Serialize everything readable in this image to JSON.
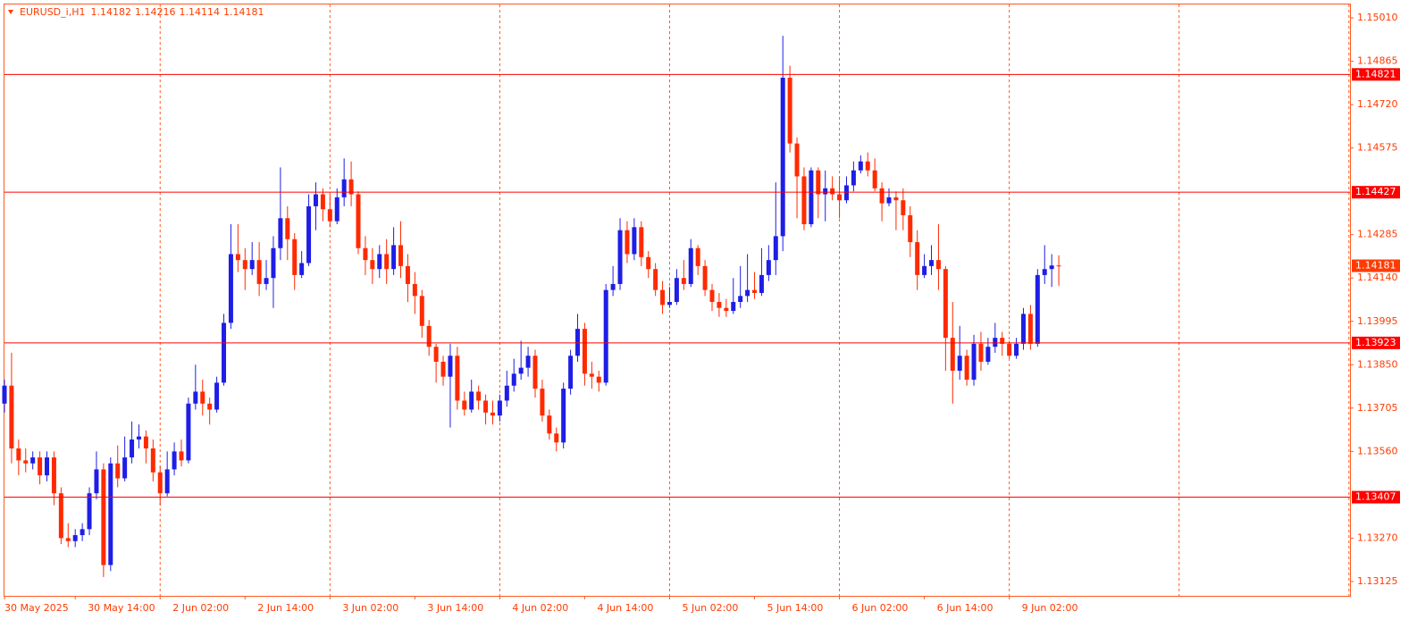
{
  "chart_data": {
    "type": "candlestick",
    "symbol": "EURUSD_i,H1",
    "bull_color": "#1e1ee6",
    "bear_color": "#ff2a00",
    "ylim": [
      1.13077,
      1.15055
    ],
    "yticks": [
      {
        "value": 1.1501,
        "label": "1.15010"
      },
      {
        "value": 1.14865,
        "label": "1.14865"
      },
      {
        "value": 1.1472,
        "label": "1.14720"
      },
      {
        "value": 1.14575,
        "label": "1.14575"
      },
      {
        "value": 1.14285,
        "label": "1.14285"
      },
      {
        "value": 1.1414,
        "label": "1.14140"
      },
      {
        "value": 1.13995,
        "label": "1.13995"
      },
      {
        "value": 1.1385,
        "label": "1.13850"
      },
      {
        "value": 1.13705,
        "label": "1.13705"
      },
      {
        "value": 1.1356,
        "label": "1.13560"
      },
      {
        "value": 1.1327,
        "label": "1.13270"
      },
      {
        "value": 1.13125,
        "label": "1.13125"
      }
    ],
    "levels": [
      1.14821,
      1.14427,
      1.13923,
      1.13407
    ],
    "period_separators": true,
    "categories": [
      "30 May 2025",
      null,
      null,
      null,
      null,
      null,
      null,
      null,
      null,
      null,
      "30 May 14:00",
      null,
      null,
      null,
      null,
      null,
      null,
      null,
      null,
      null,
      null,
      null,
      "2 Jun 02:00",
      null,
      null,
      null,
      null,
      null,
      null,
      null,
      null,
      null,
      null,
      null,
      "2 Jun 14:00",
      null,
      null,
      null,
      null,
      null,
      null,
      null,
      null,
      null,
      null,
      null,
      "3 Jun 02:00",
      null,
      null,
      null,
      null,
      null,
      null,
      null,
      null,
      null,
      null,
      null,
      "3 Jun 14:00",
      null,
      null,
      null,
      null,
      null,
      null,
      null,
      null,
      null,
      null,
      null,
      "4 Jun 02:00",
      null,
      null,
      null,
      null,
      null,
      null,
      null,
      null,
      null,
      null,
      null,
      "4 Jun 14:00",
      null,
      null,
      null,
      null,
      null,
      null,
      null,
      null,
      null,
      null,
      null,
      "5 Jun 02:00",
      null,
      null,
      null,
      null,
      null,
      null,
      null,
      null,
      null,
      null,
      null,
      "5 Jun 14:00",
      null,
      null,
      null,
      null,
      null,
      null,
      null,
      null,
      null,
      null,
      null,
      "6 Jun 02:00",
      null,
      null,
      null,
      null,
      null,
      null,
      null,
      null,
      null,
      null,
      null,
      "6 Jun 14:00",
      null,
      null,
      null,
      null,
      null,
      null,
      null,
      null,
      null,
      null,
      null,
      "9 Jun 02:00",
      null,
      null,
      null,
      null,
      null,
      null,
      null
    ],
    "open": [
      1.1372,
      1.1378,
      1.1357,
      1.1353,
      1.1352,
      1.1354,
      1.1348,
      1.1354,
      1.1342,
      1.1327,
      1.1326,
      1.1328,
      1.133,
      1.1342,
      1.135,
      1.1318,
      1.1352,
      1.1347,
      1.1354,
      1.136,
      1.1361,
      1.1357,
      1.1349,
      1.1342,
      1.135,
      1.1356,
      1.1353,
      1.1372,
      1.1376,
      1.1372,
      1.137,
      1.1379,
      1.1399,
      1.1422,
      1.142,
      1.1417,
      1.142,
      1.1412,
      1.1414,
      1.1424,
      1.1434,
      1.1427,
      1.1415,
      1.1419,
      1.1438,
      1.1442,
      1.1437,
      1.1433,
      1.1441,
      1.1447,
      1.1442,
      1.1424,
      1.142,
      1.1417,
      1.1422,
      1.1417,
      1.1425,
      1.1418,
      1.1412,
      1.1408,
      1.1398,
      1.1391,
      1.1386,
      1.1381,
      1.1388,
      1.1373,
      1.137,
      1.1376,
      1.1373,
      1.1369,
      1.1368,
      1.1373,
      1.1378,
      1.1382,
      1.1384,
      1.1388,
      1.1377,
      1.1368,
      1.1362,
      1.1359,
      1.1377,
      1.1388,
      1.1397,
      1.1382,
      1.1381,
      1.1379,
      1.141,
      1.1412,
      1.143,
      1.1422,
      1.1431,
      1.1421,
      1.1417,
      1.141,
      1.1405,
      1.1406,
      1.1414,
      1.1412,
      1.1424,
      1.1418,
      1.141,
      1.1406,
      1.1404,
      1.1403,
      1.1406,
      1.1408,
      1.141,
      1.1409,
      1.1415,
      1.142,
      1.1428,
      1.1481,
      1.1459,
      1.1448,
      1.1432,
      1.145,
      1.1442,
      1.1444,
      1.1442,
      1.144,
      1.1445,
      1.145,
      1.1453,
      1.145,
      1.1444,
      1.1439,
      1.1441,
      1.144,
      1.1435,
      1.1426,
      1.1415,
      1.1418,
      1.142,
      1.1417,
      1.1394,
      1.1383,
      1.1388,
      1.138,
      1.1392,
      1.1386,
      1.1391,
      1.1394,
      1.1392,
      1.1388,
      1.1392,
      1.1402,
      1.1392,
      1.1415,
      1.1417,
      1.14182
    ],
    "high": [
      1.138,
      1.1389,
      1.136,
      1.1357,
      1.1356,
      1.1356,
      1.1356,
      1.1356,
      1.1344,
      1.1332,
      1.133,
      1.1332,
      1.1344,
      1.1356,
      1.1352,
      1.1354,
      1.1358,
      1.1361,
      1.1366,
      1.1365,
      1.1363,
      1.136,
      1.1351,
      1.1356,
      1.1359,
      1.136,
      1.1374,
      1.1385,
      1.138,
      1.1374,
      1.1381,
      1.1402,
      1.1432,
      1.1432,
      1.1424,
      1.1426,
      1.1426,
      1.142,
      1.1428,
      1.1451,
      1.1438,
      1.1429,
      1.1423,
      1.1442,
      1.1446,
      1.1444,
      1.1442,
      1.1444,
      1.1454,
      1.1453,
      1.1443,
      1.1428,
      1.1424,
      1.1425,
      1.1427,
      1.1431,
      1.1433,
      1.1422,
      1.1416,
      1.141,
      1.14,
      1.1392,
      1.1388,
      1.1392,
      1.1391,
      1.1376,
      1.138,
      1.1378,
      1.1375,
      1.1373,
      1.1375,
      1.1383,
      1.1387,
      1.1393,
      1.1391,
      1.139,
      1.138,
      1.137,
      1.1364,
      1.1379,
      1.139,
      1.1402,
      1.1399,
      1.1386,
      1.1383,
      1.1412,
      1.1418,
      1.1434,
      1.1433,
      1.1434,
      1.1433,
      1.1423,
      1.1419,
      1.1413,
      1.1411,
      1.1417,
      1.142,
      1.1427,
      1.1425,
      1.142,
      1.1412,
      1.1409,
      1.1407,
      1.1414,
      1.1418,
      1.1422,
      1.1416,
      1.1424,
      1.1425,
      1.1446,
      1.1495,
      1.1485,
      1.1461,
      1.1451,
      1.1451,
      1.1451,
      1.145,
      1.1448,
      1.1448,
      1.1448,
      1.1453,
      1.1455,
      1.1456,
      1.1454,
      1.1446,
      1.1444,
      1.1443,
      1.1444,
      1.1438,
      1.143,
      1.1422,
      1.1425,
      1.1432,
      1.1418,
      1.1406,
      1.1398,
      1.139,
      1.1395,
      1.1396,
      1.1394,
      1.1399,
      1.1396,
      1.1393,
      1.1394,
      1.1404,
      1.1405,
      1.1417,
      1.1425,
      1.1422,
      1.14216
    ],
    "low": [
      1.1369,
      1.1352,
      1.1348,
      1.1349,
      1.135,
      1.1345,
      1.1346,
      1.1338,
      1.1325,
      1.1324,
      1.1324,
      1.1326,
      1.1328,
      1.134,
      1.1314,
      1.1316,
      1.1344,
      1.1346,
      1.1352,
      1.1357,
      1.1352,
      1.1346,
      1.1338,
      1.1341,
      1.1348,
      1.1351,
      1.1352,
      1.137,
      1.1368,
      1.1365,
      1.1369,
      1.1378,
      1.1397,
      1.1416,
      1.141,
      1.1415,
      1.1408,
      1.141,
      1.1404,
      1.142,
      1.142,
      1.141,
      1.1414,
      1.1418,
      1.143,
      1.1433,
      1.1431,
      1.1432,
      1.1438,
      1.1438,
      1.1422,
      1.1415,
      1.1412,
      1.1414,
      1.1412,
      1.1415,
      1.1414,
      1.1406,
      1.1402,
      1.1394,
      1.1388,
      1.1379,
      1.1378,
      1.1364,
      1.137,
      1.1368,
      1.1369,
      1.137,
      1.1365,
      1.1365,
      1.1366,
      1.1371,
      1.1376,
      1.138,
      1.1381,
      1.1374,
      1.1366,
      1.136,
      1.1356,
      1.1357,
      1.1375,
      1.1386,
      1.1378,
      1.1377,
      1.1376,
      1.1378,
      1.1408,
      1.141,
      1.1419,
      1.142,
      1.1418,
      1.1414,
      1.1408,
      1.1402,
      1.1404,
      1.1405,
      1.141,
      1.1411,
      1.1415,
      1.1408,
      1.1403,
      1.1401,
      1.1401,
      1.1402,
      1.1404,
      1.1406,
      1.1407,
      1.1408,
      1.1413,
      1.1415,
      1.1423,
      1.1456,
      1.1434,
      1.143,
      1.1431,
      1.1434,
      1.1433,
      1.144,
      1.1434,
      1.1439,
      1.1443,
      1.1449,
      1.1448,
      1.1443,
      1.1433,
      1.1438,
      1.143,
      1.143,
      1.1421,
      1.141,
      1.1414,
      1.1415,
      1.141,
      1.1383,
      1.1372,
      1.138,
      1.1378,
      1.1378,
      1.1383,
      1.1385,
      1.1389,
      1.1388,
      1.1387,
      1.1387,
      1.139,
      1.139,
      1.1391,
      1.1412,
      1.1411,
      1.14114
    ],
    "close": [
      1.1378,
      1.1357,
      1.1353,
      1.1352,
      1.1354,
      1.1348,
      1.1354,
      1.1342,
      1.1327,
      1.1326,
      1.1328,
      1.133,
      1.1342,
      1.135,
      1.1318,
      1.1352,
      1.1347,
      1.1354,
      1.136,
      1.1361,
      1.1357,
      1.1349,
      1.1342,
      1.135,
      1.1356,
      1.1353,
      1.1372,
      1.1376,
      1.1372,
      1.137,
      1.1379,
      1.1399,
      1.1422,
      1.142,
      1.1417,
      1.142,
      1.1412,
      1.1414,
      1.1424,
      1.1434,
      1.1427,
      1.1415,
      1.1419,
      1.1438,
      1.1442,
      1.1437,
      1.1433,
      1.1441,
      1.1447,
      1.1442,
      1.1424,
      1.142,
      1.1417,
      1.1422,
      1.1417,
      1.1425,
      1.1418,
      1.1412,
      1.1408,
      1.1398,
      1.1391,
      1.1386,
      1.1381,
      1.1388,
      1.1373,
      1.137,
      1.1376,
      1.1373,
      1.1369,
      1.1368,
      1.1373,
      1.1378,
      1.1382,
      1.1384,
      1.1388,
      1.1377,
      1.1368,
      1.1362,
      1.1359,
      1.1377,
      1.1388,
      1.1397,
      1.1382,
      1.1381,
      1.1379,
      1.141,
      1.1412,
      1.143,
      1.1422,
      1.1431,
      1.1421,
      1.1417,
      1.141,
      1.1405,
      1.1406,
      1.1414,
      1.1412,
      1.1424,
      1.1418,
      1.141,
      1.1406,
      1.1404,
      1.1403,
      1.1406,
      1.1408,
      1.141,
      1.1409,
      1.1415,
      1.142,
      1.1428,
      1.1481,
      1.1459,
      1.1448,
      1.1432,
      1.145,
      1.1442,
      1.1444,
      1.1442,
      1.144,
      1.1445,
      1.145,
      1.1453,
      1.145,
      1.1444,
      1.1439,
      1.1441,
      1.144,
      1.1435,
      1.1426,
      1.1415,
      1.1418,
      1.142,
      1.1417,
      1.1394,
      1.1383,
      1.1388,
      1.138,
      1.1392,
      1.1386,
      1.1391,
      1.1394,
      1.1392,
      1.1388,
      1.1392,
      1.1402,
      1.1392,
      1.1415,
      1.1417,
      1.14182,
      1.14181
    ]
  }
}
